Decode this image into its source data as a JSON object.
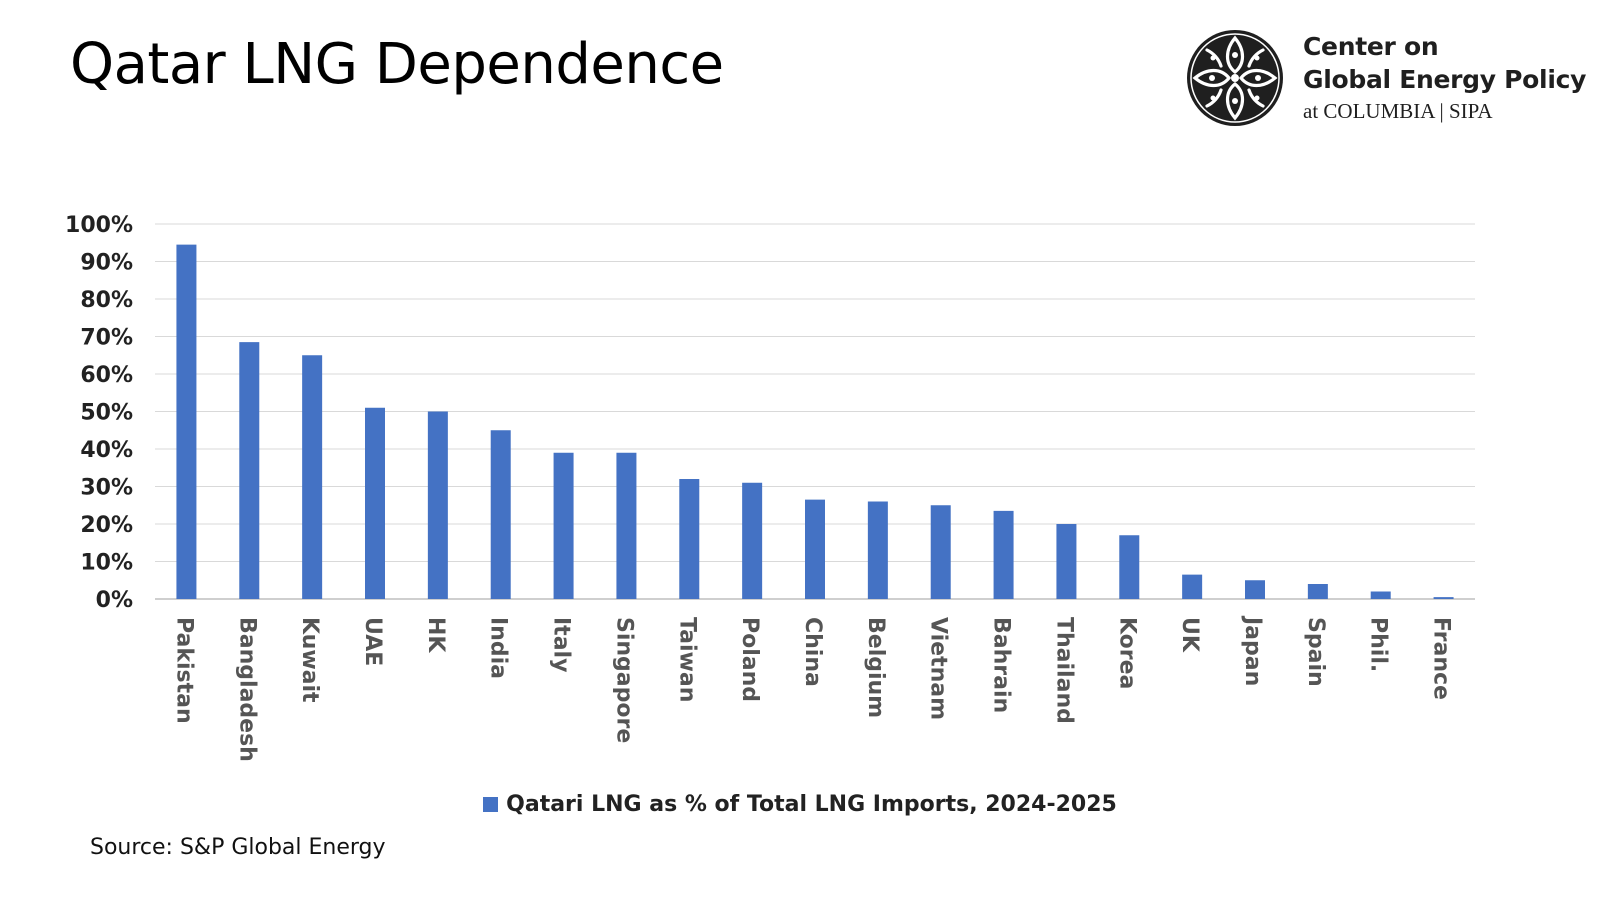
{
  "slide": {
    "title": "Qatar LNG Dependence",
    "source": "Source: S&P Global Energy"
  },
  "logo": {
    "line1": "Center on",
    "line2": "Global Energy Policy",
    "line3": "at COLUMBIA | SIPA",
    "icon": "columbia-crown-seal-icon"
  },
  "chart_data": {
    "type": "bar",
    "title": "",
    "xlabel": "",
    "ylabel": "",
    "ylim": [
      0,
      100
    ],
    "yticks": [
      "0%",
      "10%",
      "20%",
      "30%",
      "40%",
      "50%",
      "60%",
      "70%",
      "80%",
      "90%",
      "100%"
    ],
    "grid": true,
    "legend_position": "bottom",
    "categories": [
      "Pakistan",
      "Bangladesh",
      "Kuwait",
      "UAE",
      "HK",
      "India",
      "Italy",
      "Singapore",
      "Taiwan",
      "Poland",
      "China",
      "Belgium",
      "Vietnam",
      "Bahrain",
      "Thailand",
      "Korea",
      "UK",
      "Japan",
      "Spain",
      "Phil.",
      "France"
    ],
    "series": [
      {
        "name": "Qatari LNG as % of Total LNG Imports, 2024-2025",
        "color": "#4472c4",
        "values": [
          94.5,
          68.5,
          65,
          51,
          50,
          45,
          39,
          39,
          32,
          31,
          26.5,
          26,
          25,
          23.5,
          20,
          17,
          6.5,
          5,
          4,
          2,
          0.5
        ]
      }
    ]
  }
}
